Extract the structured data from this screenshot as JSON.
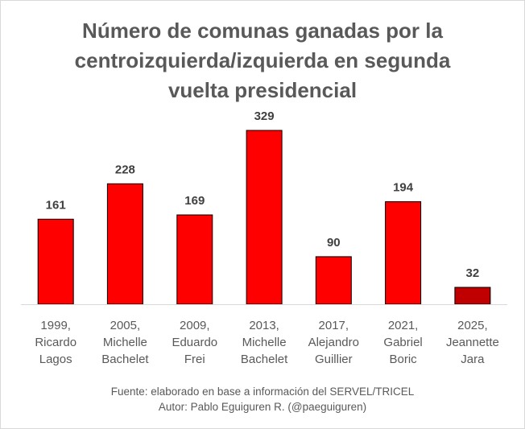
{
  "chart_data": {
    "type": "bar",
    "title_lines": [
      "Número de comunas ganadas por la",
      "centroizquierda/izquierda en segunda",
      "vuelta presidencial"
    ],
    "categories": [
      [
        "1999,",
        "Ricardo",
        "Lagos"
      ],
      [
        "2005,",
        "Michelle",
        "Bachelet"
      ],
      [
        "2009,",
        "Eduardo",
        "Frei"
      ],
      [
        "2013,",
        "Michelle",
        "Bachelet"
      ],
      [
        "2017,",
        "Alejandro",
        "Guillier"
      ],
      [
        "2021,",
        "Gabriel",
        "Boric"
      ],
      [
        "2025,",
        "Jeannette",
        "Jara"
      ]
    ],
    "values": [
      161,
      228,
      169,
      329,
      90,
      194,
      32
    ],
    "bar_colors": [
      "#ff0000",
      "#ff0000",
      "#ff0000",
      "#ff0000",
      "#ff0000",
      "#ff0000",
      "#c00000"
    ],
    "bar_outline": "#000000",
    "ylim": [
      0,
      329
    ],
    "grid": false,
    "legend": "none"
  },
  "footer": {
    "source": "Fuente: elaborado en base a información del SERVEL/TRICEL",
    "author": "Autor: Pablo Eguiguren R. (@paeguiguren)"
  }
}
